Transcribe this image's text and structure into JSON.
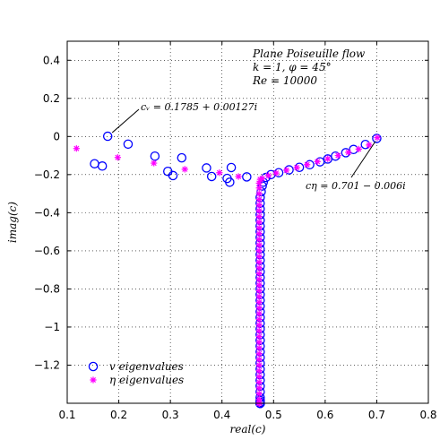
{
  "chart_data": {
    "type": "scatter",
    "xlabel": "real(c)",
    "ylabel": "imag(c)",
    "xlim": [
      0.1,
      0.8
    ],
    "ylim": [
      -1.4,
      0.5
    ],
    "x_ticks": [
      "0.1",
      "0.2",
      "0.3",
      "0.4",
      "0.5",
      "0.6",
      "0.7",
      "0.8"
    ],
    "y_ticks": [
      "0.4",
      "0.2",
      "0",
      "−0.2",
      "−0.4",
      "−0.6",
      "−0.8",
      "−1",
      "−1.2"
    ],
    "grid": true,
    "legend_position": "bottom-left",
    "annotations_top_right": [
      "Plane Poiseuille flow",
      "k = 1, φ = 45°",
      "Re = 10000"
    ],
    "callouts": [
      {
        "text": "cᵥ = 0.1785 + 0.00127i",
        "x": 0.1785,
        "y": 0.00127
      },
      {
        "text": "cη = 0.701 − 0.006i",
        "x": 0.701,
        "y": -0.006
      }
    ],
    "series": [
      {
        "name": "v eigenvalues",
        "marker": "circle",
        "color": "#0000ff",
        "x": [
          0.1785,
          0.153,
          0.168,
          0.218,
          0.27,
          0.295,
          0.305,
          0.322,
          0.37,
          0.38,
          0.41,
          0.415,
          0.418,
          0.448,
          0.48,
          0.485,
          0.495,
          0.51,
          0.53,
          0.55,
          0.57,
          0.59,
          0.605,
          0.62,
          0.64,
          0.655,
          0.678,
          0.7,
          0.478,
          0.476,
          0.474,
          0.474,
          0.474,
          0.474,
          0.474,
          0.474,
          0.474,
          0.474,
          0.474,
          0.474,
          0.474,
          0.474,
          0.474,
          0.474,
          0.474,
          0.474,
          0.474,
          0.474,
          0.474,
          0.474,
          0.474,
          0.474,
          0.474,
          0.474,
          0.474,
          0.474,
          0.474,
          0.474,
          0.474,
          0.474,
          0.474,
          0.474,
          0.474,
          0.474,
          0.474,
          0.474,
          0.474,
          0.474,
          0.474,
          0.474,
          0.474,
          0.474,
          0.474,
          0.474,
          0.474,
          0.474,
          0.474,
          0.474,
          0.474
        ],
        "y": [
          0.00127,
          -0.143,
          -0.155,
          -0.04,
          -0.103,
          -0.183,
          -0.205,
          -0.112,
          -0.165,
          -0.21,
          -0.22,
          -0.24,
          -0.163,
          -0.212,
          -0.24,
          -0.215,
          -0.2,
          -0.19,
          -0.175,
          -0.162,
          -0.148,
          -0.133,
          -0.118,
          -0.103,
          -0.085,
          -0.068,
          -0.042,
          -0.01,
          -0.26,
          -0.29,
          -0.32,
          -0.35,
          -0.38,
          -0.41,
          -0.44,
          -0.47,
          -0.5,
          -0.53,
          -0.56,
          -0.59,
          -0.62,
          -0.65,
          -0.68,
          -0.71,
          -0.74,
          -0.77,
          -0.8,
          -0.83,
          -0.86,
          -0.89,
          -0.92,
          -0.95,
          -0.98,
          -1.01,
          -1.04,
          -1.07,
          -1.1,
          -1.13,
          -1.16,
          -1.19,
          -1.22,
          -1.25,
          -1.28,
          -1.31,
          -1.34,
          -1.37,
          -1.385,
          -1.395,
          -1.4,
          -1.4,
          -1.4,
          -1.4,
          -1.4,
          -1.4,
          -1.4,
          -1.4,
          -1.4,
          -1.4,
          -1.4
        ]
      },
      {
        "name": "η eigenvalues",
        "marker": "asterisk",
        "color": "#ff00ff",
        "x": [
          0.118,
          0.198,
          0.268,
          0.328,
          0.395,
          0.432,
          0.474,
          0.478,
          0.49,
          0.505,
          0.525,
          0.545,
          0.565,
          0.585,
          0.605,
          0.625,
          0.645,
          0.665,
          0.685,
          0.701,
          0.472,
          0.472,
          0.472,
          0.472,
          0.472,
          0.472,
          0.472,
          0.472,
          0.472,
          0.472,
          0.472,
          0.472,
          0.472,
          0.472,
          0.472,
          0.472,
          0.472,
          0.472,
          0.472,
          0.472,
          0.472,
          0.472,
          0.472,
          0.472,
          0.472,
          0.472,
          0.472,
          0.472,
          0.472,
          0.472,
          0.472,
          0.472,
          0.472,
          0.472,
          0.472,
          0.472,
          0.472,
          0.472,
          0.472,
          0.472,
          0.472,
          0.472,
          0.472,
          0.472,
          0.472,
          0.472
        ],
        "y": [
          -0.063,
          -0.11,
          -0.14,
          -0.172,
          -0.19,
          -0.21,
          -0.225,
          -0.22,
          -0.205,
          -0.192,
          -0.177,
          -0.163,
          -0.148,
          -0.132,
          -0.117,
          -0.1,
          -0.083,
          -0.066,
          -0.045,
          -0.006,
          -0.245,
          -0.27,
          -0.3,
          -0.33,
          -0.36,
          -0.39,
          -0.42,
          -0.45,
          -0.48,
          -0.51,
          -0.54,
          -0.57,
          -0.6,
          -0.63,
          -0.66,
          -0.69,
          -0.72,
          -0.75,
          -0.78,
          -0.81,
          -0.84,
          -0.87,
          -0.9,
          -0.93,
          -0.96,
          -0.99,
          -1.02,
          -1.05,
          -1.08,
          -1.11,
          -1.14,
          -1.17,
          -1.2,
          -1.23,
          -1.26,
          -1.29,
          -1.32,
          -1.35,
          -1.38,
          -1.4,
          -1.4,
          -1.4,
          -1.4,
          -1.4,
          -1.4,
          -1.4
        ]
      }
    ]
  }
}
